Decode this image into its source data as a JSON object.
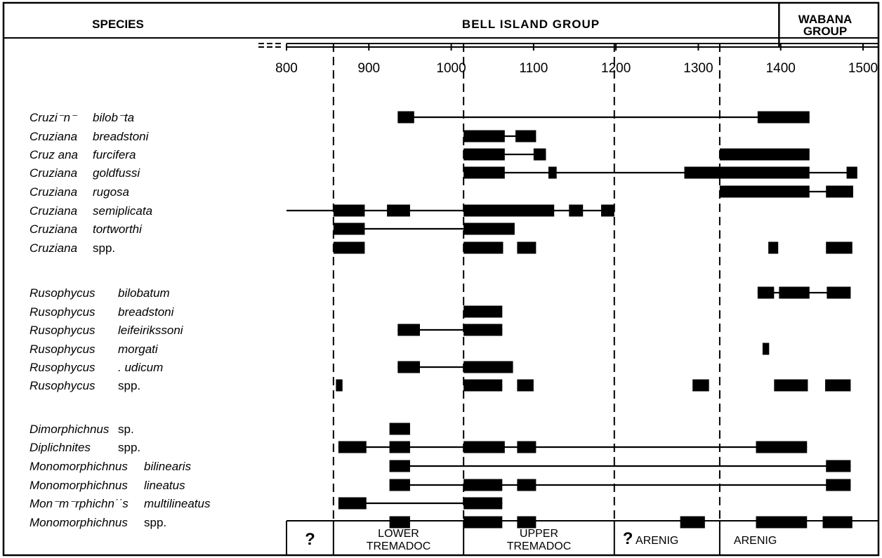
{
  "chart_data": {
    "type": "range-chart",
    "title": "",
    "header": {
      "species_label": "SPECIES",
      "group_main": "BELL ISLAND GROUP",
      "group_side_line1": "WABANA",
      "group_side_line2": "GROUP"
    },
    "x_axis": {
      "ticks": [
        800,
        900,
        1000,
        1100,
        1200,
        1300,
        1400,
        1500
      ],
      "range": [
        800,
        1500
      ],
      "xlabel": "",
      "break_symbol": true
    },
    "boundaries": [
      {
        "x": 857,
        "style": "dashed"
      },
      {
        "x": 1015,
        "style": "dashed"
      },
      {
        "x": 1198,
        "style": "dashed"
      },
      {
        "x": 1326,
        "style": "dashed"
      }
    ],
    "group_boundary_x": 1398,
    "stages": [
      {
        "label": "?",
        "from": 800,
        "to": 857,
        "qmark": true
      },
      {
        "label": "LOWER",
        "label2": "TREMADOC",
        "from": 857,
        "to": 1015
      },
      {
        "label": "UPPER",
        "label2": "TREMADOC",
        "from": 1015,
        "to": 1198
      },
      {
        "label": "? ARENIG",
        "from": 1198,
        "to": 1326,
        "qprefix": true
      },
      {
        "label": "ARENIG",
        "from": 1326,
        "to": 1525
      }
    ],
    "species": [
      {
        "genus": "Cruzi⁻n⁻",
        "epithet": "bilob⁻ta",
        "line": [
          940,
          1435
        ],
        "bars": [
          [
            935,
            955
          ],
          [
            1372,
            1435
          ]
        ]
      },
      {
        "genus": "Cruziana",
        "epithet": "breadstoni",
        "line": [
          1015,
          1100
        ],
        "bars": [
          [
            1015,
            1065
          ],
          [
            1078,
            1103
          ]
        ]
      },
      {
        "genus": "Cruz ana",
        "epithet": "furcifera",
        "line": [
          1015,
          1115
        ],
        "bars": [
          [
            1015,
            1065
          ],
          [
            1100,
            1115
          ],
          [
            1326,
            1435
          ]
        ]
      },
      {
        "genus": "Cruziana",
        "epithet": "goldfussi",
        "line": [
          1015,
          1490
        ],
        "bars": [
          [
            1015,
            1065
          ],
          [
            1118,
            1128
          ],
          [
            1283,
            1435
          ],
          [
            1480,
            1493
          ]
        ]
      },
      {
        "genus": "Cruziana",
        "epithet": "rugosa",
        "line": [
          1326,
          1488
        ],
        "bars": [
          [
            1326,
            1435
          ],
          [
            1455,
            1488
          ]
        ]
      },
      {
        "genus": "Cruziana",
        "epithet": "semiplicata",
        "line": [
          800,
          1198
        ],
        "bars": [
          [
            857,
            895
          ],
          [
            922,
            950
          ],
          [
            1015,
            1125
          ],
          [
            1143,
            1160
          ],
          [
            1182,
            1198
          ]
        ]
      },
      {
        "genus": "Cruziana",
        "epithet": "tortworthi",
        "line": [
          857,
          1015
        ],
        "bars": [
          [
            857,
            895
          ],
          [
            1015,
            1077
          ]
        ]
      },
      {
        "genus": "Cruziana",
        "epithet": "spp.",
        "epithet_plain": true,
        "line": null,
        "bars": [
          [
            857,
            895
          ],
          [
            1015,
            1063
          ],
          [
            1080,
            1103
          ],
          [
            1385,
            1397
          ],
          [
            1455,
            1487
          ]
        ]
      },
      {
        "genus": "Rusophycus",
        "epithet": "bilobatum",
        "line": [
          1372,
          1485
        ],
        "bars": [
          [
            1372,
            1392
          ],
          [
            1398,
            1435
          ],
          [
            1456,
            1485
          ]
        ]
      },
      {
        "genus": "Rusophycus",
        "epithet": "breadstoni",
        "line": null,
        "bars": [
          [
            1015,
            1062
          ]
        ]
      },
      {
        "genus": "Rusophycus",
        "epithet": "leifeirikssoni",
        "line": [
          935,
          1062
        ],
        "bars": [
          [
            935,
            962
          ],
          [
            1015,
            1062
          ]
        ]
      },
      {
        "genus": "Rusophycus",
        "epithet": "morgati",
        "line": null,
        "bars": [
          [
            1378,
            1386
          ]
        ]
      },
      {
        "genus": "Rusophycus",
        "epithet": ". udicum",
        "line": [
          935,
          1075
        ],
        "bars": [
          [
            935,
            962
          ],
          [
            1015,
            1075
          ]
        ]
      },
      {
        "genus": "Rusophycus",
        "epithet": "spp.",
        "epithet_plain": true,
        "line": null,
        "bars": [
          [
            860,
            868
          ],
          [
            1015,
            1062
          ],
          [
            1080,
            1100
          ],
          [
            1293,
            1313
          ],
          [
            1392,
            1433
          ],
          [
            1454,
            1485
          ]
        ]
      },
      {
        "genus": "Dimorphichnus",
        "epithet": "sp.",
        "epithet_plain": true,
        "line": null,
        "bars": [
          [
            925,
            950
          ]
        ]
      },
      {
        "genus": "Diplichnites",
        "epithet": "spp.",
        "epithet_plain": true,
        "line": [
          863,
          1432
        ],
        "bars": [
          [
            863,
            897
          ],
          [
            925,
            950
          ],
          [
            1015,
            1065
          ],
          [
            1080,
            1103
          ],
          [
            1370,
            1432
          ]
        ]
      },
      {
        "genus": "Monomorphichnus",
        "epithet": "bilinearis",
        "line": [
          925,
          1485
        ],
        "bars": [
          [
            925,
            950
          ],
          [
            1455,
            1485
          ]
        ]
      },
      {
        "genus": "Monomorphichnus",
        "epithet": "lineatus",
        "line": [
          925,
          1485
        ],
        "bars": [
          [
            925,
            950
          ],
          [
            1015,
            1062
          ],
          [
            1080,
            1103
          ],
          [
            1455,
            1485
          ]
        ]
      },
      {
        "genus": "Mon⁻m⁻rphichn˙˙s",
        "epithet": "multilineatus",
        "line": [
          863,
          1062
        ],
        "bars": [
          [
            863,
            897
          ],
          [
            1015,
            1062
          ]
        ]
      },
      {
        "genus": "Monomorphichnus",
        "epithet": "spp.",
        "epithet_plain": true,
        "line": null,
        "bars": [
          [
            925,
            950
          ],
          [
            1015,
            1062
          ],
          [
            1080,
            1103
          ],
          [
            1278,
            1308
          ],
          [
            1370,
            1432
          ],
          [
            1451,
            1487
          ]
        ]
      }
    ]
  }
}
